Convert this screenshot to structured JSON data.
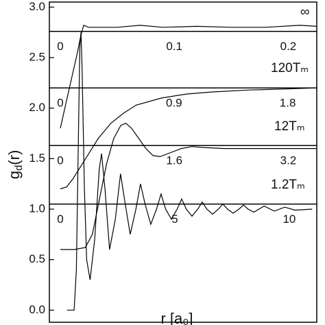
{
  "chart_data": {
    "type": "line",
    "ylabel": {
      "main": "g",
      "sub": "d",
      "rest": "(r)"
    },
    "xlabel": "r  [a₀]",
    "ylim": [
      -0.12,
      3.05
    ],
    "yticks": [
      {
        "value": 0,
        "label": "0.0"
      },
      0.5,
      {
        "value": 1,
        "label": "1.0"
      },
      1.5,
      {
        "value": 2,
        "label": "2.0"
      },
      2.5,
      {
        "value": 3,
        "label": "3.0"
      }
    ],
    "series": [
      {
        "name": "∞",
        "color": "#000000",
        "baseline": 2.76,
        "xlim": [
          -0.0096,
          0.225
        ],
        "xticks": [
          0,
          0.1,
          0.2
        ],
        "x": [
          0,
          0.003,
          0.006,
          0.009,
          0.012,
          0.015,
          0.018,
          0.0205,
          0.025,
          0.05,
          0.07,
          0.09,
          0.12,
          0.15,
          0.18,
          0.21,
          0.225
        ],
        "values": [
          1.8,
          1.95,
          2.1,
          2.25,
          2.4,
          2.55,
          2.72,
          2.82,
          2.8,
          2.8,
          2.82,
          2.8,
          2.81,
          2.8,
          2.8,
          2.82,
          2.81
        ]
      },
      {
        "name": "120Tₘ",
        "color": "#000000",
        "baseline": 2.2,
        "xlim": [
          -0.087,
          2.03
        ],
        "xticks": [
          0,
          0.9,
          1.8
        ],
        "x": [
          0,
          0.05,
          0.1,
          0.2,
          0.3,
          0.4,
          0.5,
          0.6,
          0.8,
          1.0,
          1.2,
          1.5,
          1.8,
          2.03
        ],
        "values": [
          1.2,
          1.22,
          1.3,
          1.5,
          1.7,
          1.85,
          1.95,
          2.03,
          2.1,
          2.14,
          2.16,
          2.18,
          2.19,
          2.2
        ]
      },
      {
        "name": "12Tₘ",
        "color": "#000000",
        "baseline": 1.63,
        "xlim": [
          -0.154,
          3.6
        ],
        "xticks": [
          0,
          1.6,
          3.2
        ],
        "x": [
          0,
          0.2,
          0.35,
          0.45,
          0.55,
          0.65,
          0.75,
          0.85,
          0.92,
          1.0,
          1.1,
          1.2,
          1.3,
          1.4,
          1.55,
          1.7,
          1.85,
          2.0,
          2.3,
          2.7,
          3.2,
          3.6
        ],
        "values": [
          0.6,
          0.6,
          0.62,
          0.75,
          1.1,
          1.45,
          1.7,
          1.83,
          1.85,
          1.8,
          1.7,
          1.6,
          1.53,
          1.52,
          1.56,
          1.6,
          1.62,
          1.61,
          1.6,
          1.6,
          1.6,
          1.6
        ]
      },
      {
        "name": "1.2Tₘ",
        "color": "#000000",
        "baseline": 1.05,
        "xlim": [
          -0.48,
          11.2
        ],
        "xticks": [
          0,
          5,
          10
        ],
        "x": [
          0.3,
          0.6,
          0.7,
          0.78,
          0.85,
          0.9,
          0.95,
          1.05,
          1.15,
          1.3,
          1.5,
          1.7,
          1.8,
          1.95,
          2.15,
          2.4,
          2.63,
          2.8,
          3.05,
          3.3,
          3.5,
          3.7,
          3.95,
          4.2,
          4.4,
          4.6,
          4.85,
          5.1,
          5.3,
          5.5,
          5.75,
          6.0,
          6.2,
          6.4,
          6.65,
          6.9,
          7.1,
          7.3,
          7.55,
          7.8,
          8.0,
          8.2,
          8.45,
          8.9,
          9.35,
          9.8,
          10.25,
          11.0
        ],
        "values": [
          0,
          0,
          0.4,
          1.6,
          2.6,
          2.75,
          2.4,
          1.2,
          0.5,
          0.3,
          0.7,
          1.4,
          1.55,
          1.2,
          0.6,
          0.9,
          1.35,
          1.1,
          0.75,
          1.0,
          1.25,
          1.05,
          0.85,
          1.0,
          1.15,
          1.0,
          0.9,
          1.0,
          1.1,
          1.0,
          0.93,
          1.0,
          1.07,
          1.0,
          0.95,
          1.0,
          1.05,
          1.0,
          0.96,
          1.0,
          1.04,
          1.0,
          0.97,
          1.03,
          0.98,
          1.02,
          0.99,
          1.0
        ]
      }
    ]
  }
}
